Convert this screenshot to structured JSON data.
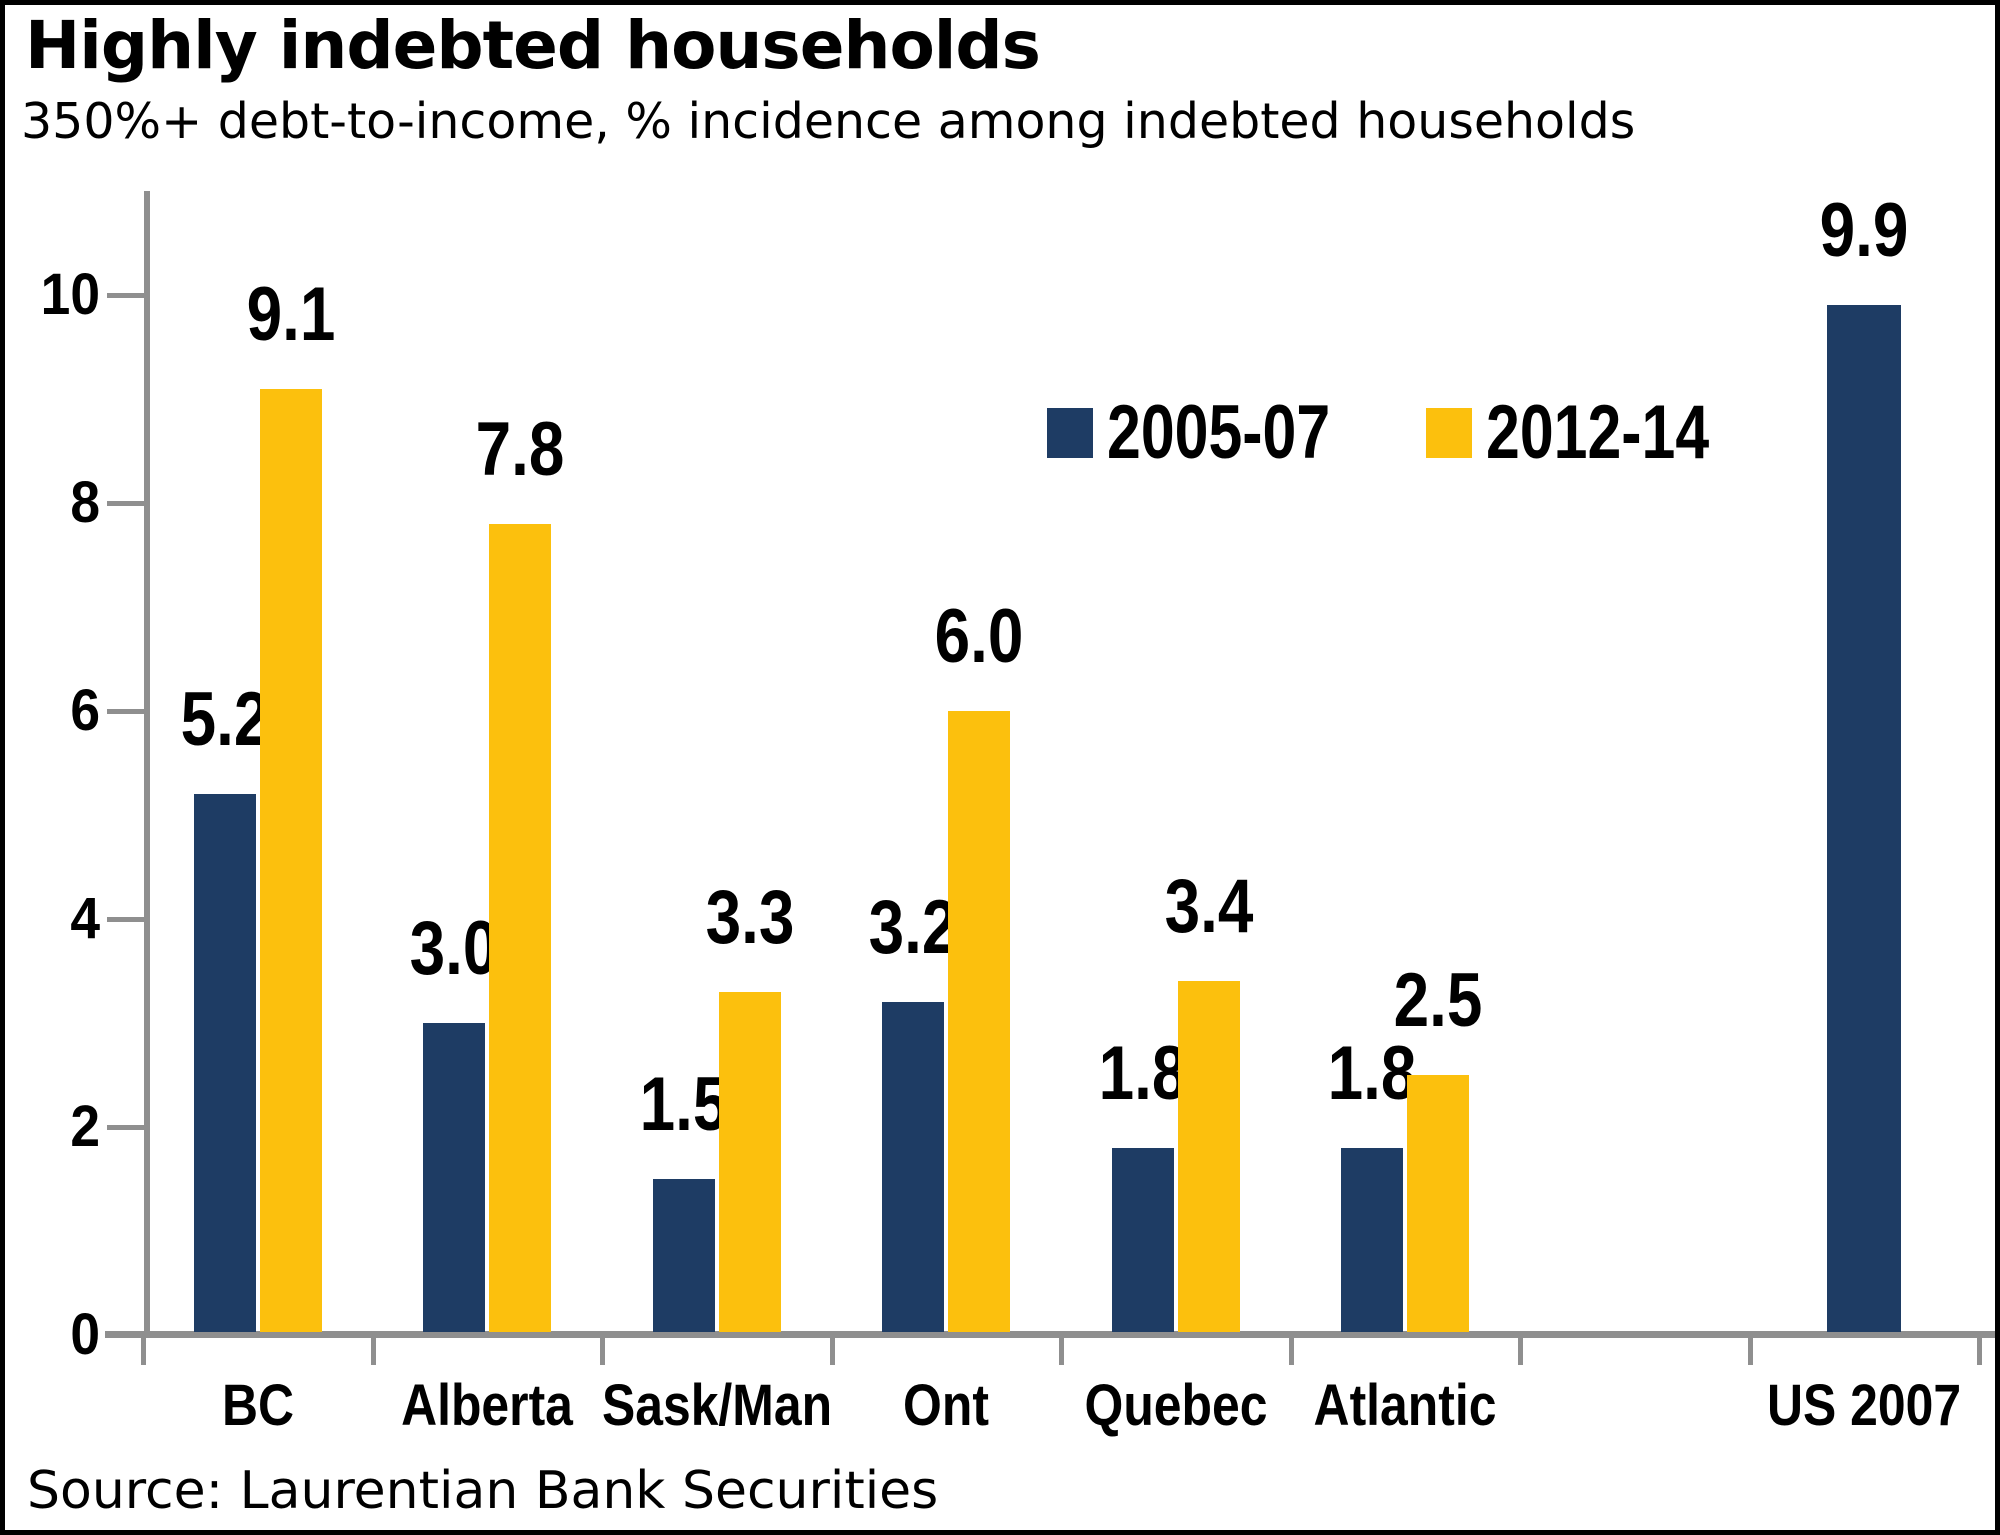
{
  "header": {
    "title": "Highly indebted households",
    "subtitle": "350%+ debt-to-income, % incidence among indebted households"
  },
  "footer": {
    "source": "Source: Laurentian Bank Securities"
  },
  "chart_data": {
    "type": "bar",
    "title": "Highly indebted households",
    "subtitle": "350%+ debt-to-income, % incidence among indebted households",
    "categories": [
      "BC",
      "Alberta",
      "Sask/Man",
      "Ont",
      "Quebec",
      "Atlantic",
      "",
      "US 2007"
    ],
    "series": [
      {
        "name": "2005-07",
        "color": "#1E3C64",
        "values": [
          5.2,
          3.0,
          1.5,
          3.2,
          1.8,
          1.8,
          null,
          9.9
        ]
      },
      {
        "name": "2012-14",
        "color": "#FCC00D",
        "values": [
          9.1,
          7.8,
          3.3,
          6.0,
          3.4,
          2.5,
          null,
          null
        ]
      }
    ],
    "ylim": [
      0,
      11
    ],
    "yticks": [
      0,
      2,
      4,
      6,
      8,
      10
    ],
    "grid": false,
    "legend_position": "top-center",
    "value_labels": true,
    "axis_color": "#8f8f8f",
    "label_color": "#000000",
    "source": "Source: Laurentian Bank Securities"
  }
}
